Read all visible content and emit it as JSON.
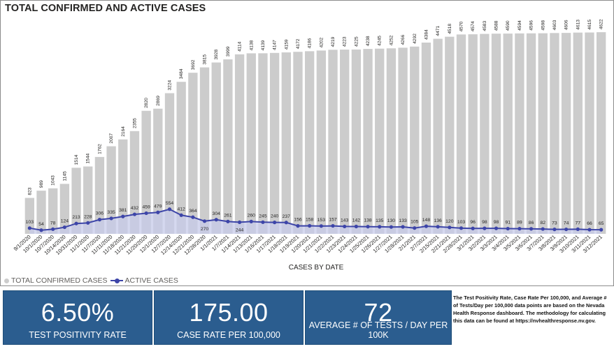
{
  "colors": {
    "bar": "#cccccc",
    "line": "#3d45a8",
    "area": "#c7cbe9",
    "kpi_bg": "#2b5d8f",
    "frame": "#8c8c8c"
  },
  "chart_data": {
    "type": "bar",
    "title": "TOTAL CONFIRMED AND ACTIVE CASES",
    "xlabel": "CASES BY DATE",
    "ylabel": "",
    "ylim": [
      0,
      4800
    ],
    "grid": false,
    "legend": "bottom-left",
    "categories": [
      "9/1/2020",
      "10/1/2020",
      "10/7/2020",
      "10/14/2020",
      "10/31/2020",
      "11/1/2020",
      "11/7/2020",
      "11/11/2020",
      "11/18/2020",
      "11/21/2020",
      "11/20/2020",
      "12/1/2020",
      "12/7/2020",
      "12/14/2020",
      "12/21/2020",
      "12/28/2020",
      "1/1/2021",
      "1/7/2021",
      "1/14/2021",
      "1/13/2021",
      "1/16/2021",
      "1/17/2021",
      "1/18/2021",
      "1/19/2021",
      "1/20/2021",
      "1/21/2021",
      "1/22/2021",
      "1/23/2021",
      "1/24/2021",
      "1/25/2021",
      "1/26/2021",
      "1/27/2021",
      "1/28/2021",
      "2/1/2021",
      "2/7/2021",
      "2/15/2021",
      "2/21/2021",
      "2/28/2021",
      "3/1/2021",
      "3/2/2021",
      "3/3/2021",
      "3/4/2021",
      "3/5/2021",
      "3/6/2021",
      "3/7/2021",
      "3/8/2021",
      "3/9/2021",
      "3/10/2021",
      "3/11/2021",
      "3/12/2021"
    ],
    "series": [
      {
        "name": "TOTAL CONFIRMED CASES",
        "type": "bar",
        "values": [
          823,
          989,
          1043,
          1145,
          1514,
          1544,
          1762,
          2007,
          2164,
          2355,
          2820,
          2869,
          3224,
          3484,
          3692,
          3815,
          3928,
          3999,
          4114,
          4138,
          4139,
          4147,
          4159,
          4172,
          4186,
          4202,
          4219,
          4223,
          4225,
          4238,
          4245,
          4252,
          4266,
          4292,
          4384,
          4471,
          4518,
          4570,
          4574,
          4583,
          4588,
          4590,
          4594,
          4596,
          4598,
          4603,
          4606,
          4613,
          4615,
          4622
        ]
      },
      {
        "name": "ACTIVE CASES",
        "type": "line",
        "values": [
          103,
          54,
          78,
          124,
          213,
          228,
          306,
          335,
          381,
          432,
          459,
          479,
          554,
          412,
          364,
          270,
          304,
          261,
          244,
          260,
          245,
          240,
          237,
          156,
          158,
          153,
          157,
          143,
          142,
          138,
          135,
          130,
          133,
          105,
          148,
          136,
          120,
          103,
          96,
          98,
          98,
          91,
          89,
          86,
          82,
          73,
          74,
          77,
          66,
          65
        ]
      }
    ]
  },
  "legend": {
    "items": [
      "TOTAL CONFIRMED CASES",
      "ACTIVE CASES"
    ]
  },
  "kpis": [
    {
      "value": "6.50%",
      "label": "TEST POSITIVITY RATE"
    },
    {
      "value": "175.00",
      "label": "CASE RATE PER 100,000"
    },
    {
      "value": "72",
      "label": "AVERAGE # OF TESTS / DAY PER 100K"
    }
  ],
  "note": "The Test Positivity Rate, Case Rate Per 100,000, and Average # of Tests/Day per 100,000 data points are based on the Nevada Health Response dashboard.  The methodology for calculating this data can be found at https://nvhealthresponse.nv.gov."
}
